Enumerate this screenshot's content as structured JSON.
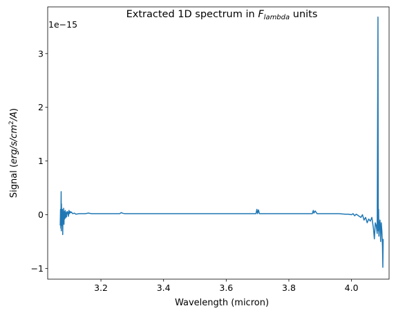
{
  "chart_data": {
    "type": "line",
    "title": {
      "prefix": "Extracted 1D spectrum in ",
      "math_base": "F",
      "math_sub": "lambda",
      "suffix": " units"
    },
    "xlabel": "Wavelength (micron)",
    "ylabel": {
      "prefix": "Signal (",
      "math_a": "erg",
      "sep1": "/",
      "math_b": "s",
      "sep2": "/",
      "math_c": "cm",
      "sup": "2",
      "sep3": "/",
      "math_d": "A",
      "suffix": ")"
    },
    "offset_text": "1e−15",
    "y_scale_factor": 1e-15,
    "xlim": [
      3.03,
      4.12
    ],
    "ylim": [
      -1.2,
      3.87
    ],
    "x_ticks": [
      {
        "value": 3.2,
        "label": "3.2"
      },
      {
        "value": 3.4,
        "label": "3.4"
      },
      {
        "value": 3.6,
        "label": "3.6"
      },
      {
        "value": 3.8,
        "label": "3.8"
      },
      {
        "value": 4.0,
        "label": "4.0"
      }
    ],
    "y_ticks": [
      {
        "value": -1,
        "label": "−1"
      },
      {
        "value": 0,
        "label": "0"
      },
      {
        "value": 1,
        "label": "1"
      },
      {
        "value": 2,
        "label": "2"
      },
      {
        "value": 3,
        "label": "3"
      }
    ],
    "grid": false,
    "legend": "none",
    "series": [
      {
        "color": "#1f77b4",
        "x": [
          3.07,
          3.071,
          3.072,
          3.073,
          3.0735,
          3.074,
          3.075,
          3.076,
          3.077,
          3.078,
          3.079,
          3.08,
          3.081,
          3.082,
          3.083,
          3.084,
          3.085,
          3.086,
          3.087,
          3.088,
          3.089,
          3.09,
          3.092,
          3.094,
          3.096,
          3.098,
          3.1,
          3.102,
          3.104,
          3.106,
          3.108,
          3.11,
          3.115,
          3.12,
          3.13,
          3.14,
          3.15,
          3.16,
          3.17,
          3.18,
          3.19,
          3.2,
          3.22,
          3.24,
          3.26,
          3.265,
          3.268,
          3.275,
          3.28,
          3.3,
          3.32,
          3.34,
          3.36,
          3.38,
          3.4,
          3.42,
          3.44,
          3.46,
          3.48,
          3.5,
          3.52,
          3.54,
          3.56,
          3.58,
          3.6,
          3.62,
          3.64,
          3.66,
          3.68,
          3.695,
          3.698,
          3.7,
          3.703,
          3.706,
          3.72,
          3.74,
          3.76,
          3.78,
          3.8,
          3.82,
          3.84,
          3.86,
          3.875,
          3.878,
          3.88,
          3.884,
          3.89,
          3.9,
          3.92,
          3.94,
          3.96,
          3.98,
          3.99,
          4.0,
          4.005,
          4.01,
          4.015,
          4.02,
          4.025,
          4.03,
          4.035,
          4.04,
          4.045,
          4.05,
          4.055,
          4.06,
          4.065,
          4.07,
          4.073,
          4.076,
          4.079,
          4.082,
          4.0845,
          4.0855,
          4.0865,
          4.0875,
          4.089,
          4.091,
          4.093,
          4.095,
          4.097,
          4.099,
          4.1,
          4.101
        ],
        "y": [
          -0.2,
          0.1,
          -0.25,
          0.43,
          -0.3,
          0.2,
          -0.2,
          -0.1,
          0.1,
          -0.37,
          0.05,
          -0.1,
          0.12,
          -0.18,
          0.06,
          -0.08,
          -0.02,
          0.08,
          -0.06,
          0.02,
          0.04,
          -0.04,
          0.06,
          0.05,
          -0.03,
          0.08,
          0.02,
          0.06,
          0.04,
          0.05,
          0.03,
          0.02,
          0.03,
          0.01,
          0.02,
          0.02,
          0.02,
          0.03,
          0.02,
          0.02,
          0.02,
          0.02,
          0.02,
          0.02,
          0.02,
          0.04,
          0.03,
          0.02,
          0.02,
          0.02,
          0.02,
          0.02,
          0.02,
          0.02,
          0.02,
          0.02,
          0.02,
          0.02,
          0.02,
          0.02,
          0.02,
          0.02,
          0.02,
          0.02,
          0.02,
          0.02,
          0.02,
          0.02,
          0.02,
          0.02,
          0.1,
          0.02,
          0.09,
          0.02,
          0.02,
          0.02,
          0.02,
          0.02,
          0.02,
          0.02,
          0.02,
          0.02,
          0.02,
          0.08,
          0.03,
          0.07,
          0.02,
          0.02,
          0.02,
          0.02,
          0.02,
          0.01,
          0.01,
          0.0,
          0.02,
          -0.02,
          0.01,
          -0.01,
          -0.03,
          -0.05,
          0.0,
          -0.1,
          -0.05,
          -0.15,
          -0.08,
          -0.12,
          -0.05,
          -0.25,
          -0.45,
          -0.15,
          -0.2,
          -0.35,
          3.68,
          -0.3,
          0.1,
          -0.4,
          -0.2,
          -0.1,
          -0.5,
          -0.15,
          -0.3,
          -0.6,
          -0.98,
          -0.45
        ]
      }
    ]
  }
}
